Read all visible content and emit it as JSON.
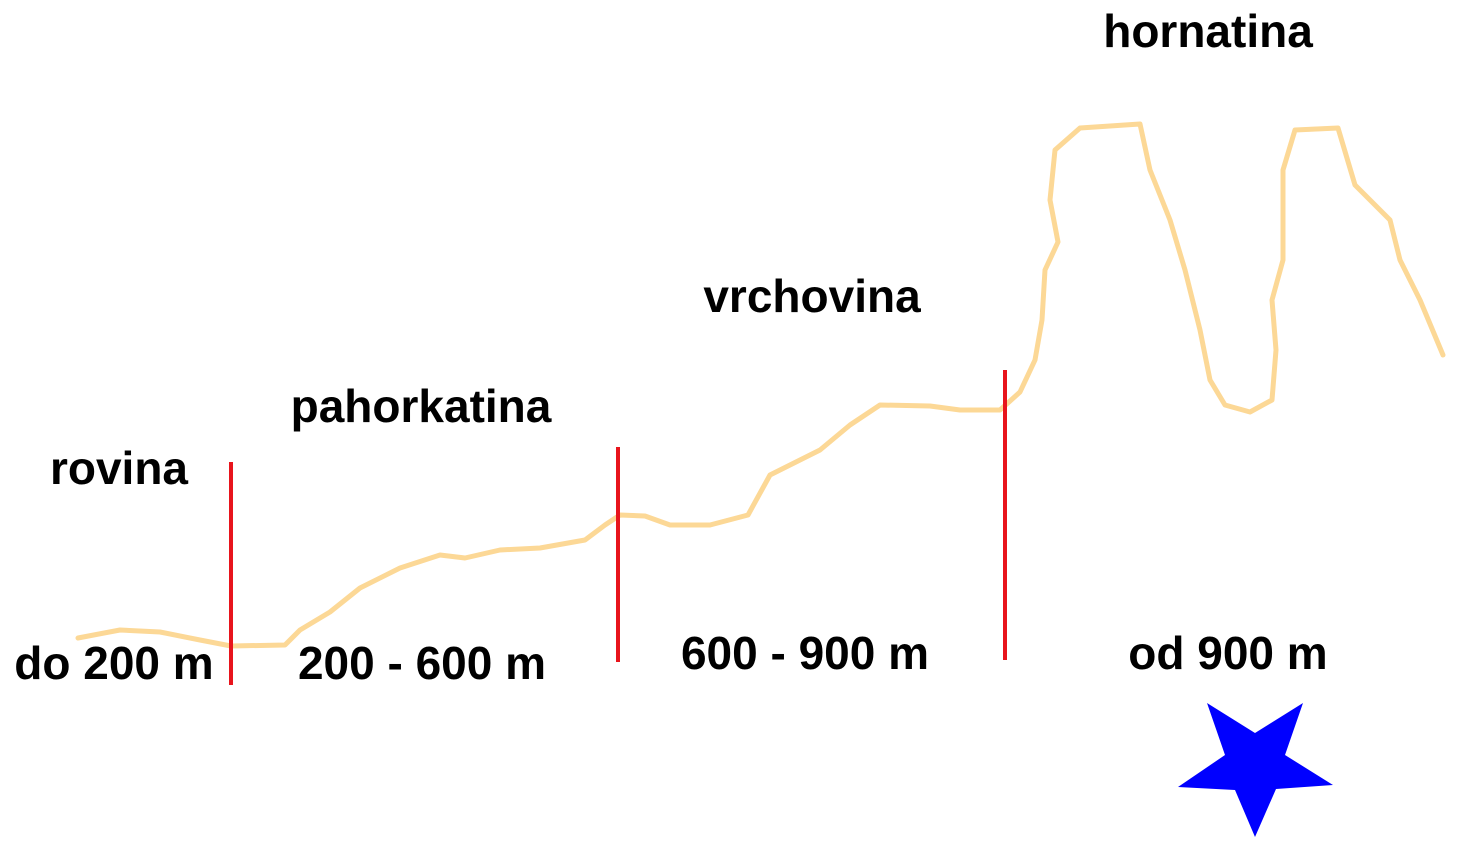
{
  "zones": [
    {
      "name": "rovina",
      "range": "do 200 m"
    },
    {
      "name": "pahorkatina",
      "range": "200 - 600 m"
    },
    {
      "name": "vrchovina",
      "range": "600 - 900 m"
    },
    {
      "name": "hornatina",
      "range": "od 900 m"
    }
  ]
}
